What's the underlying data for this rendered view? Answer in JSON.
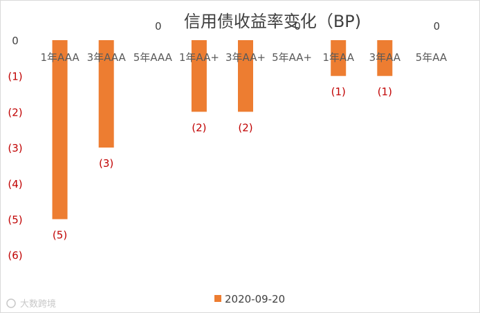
{
  "chart_data": {
    "type": "bar",
    "title": "信用债收益率变化（BP)",
    "categories": [
      "1年AAA",
      "3年AAA",
      "5年AAA",
      "1年AA+",
      "3年AA+",
      "5年AA+",
      "1年AA",
      "3年AA",
      "5年AA"
    ],
    "series": [
      {
        "name": "2020-09-20",
        "color": "#ed7d31",
        "values": [
          -5,
          -3,
          0,
          -2,
          -2,
          0,
          -1,
          -1,
          0
        ],
        "data_labels": [
          "(5)",
          "(3)",
          "0",
          "(2)",
          "(2)",
          "0",
          "(1)",
          "(1)",
          "0"
        ]
      }
    ],
    "y_ticks": [
      "0",
      "(1)",
      "(2)",
      "(3)",
      "(4)",
      "(5)",
      "(6)"
    ],
    "ylim": [
      -6,
      0
    ],
    "grid": false,
    "legend_position": "bottom",
    "negative_label_color": "#c00000"
  },
  "watermark": "大数跨境"
}
